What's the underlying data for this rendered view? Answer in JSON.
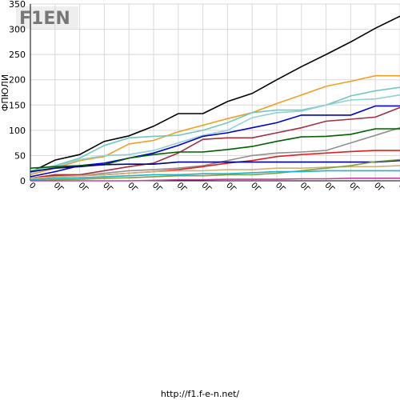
{
  "chart_data": {
    "type": "line",
    "y_label": "ФПЮЛИ",
    "logo": "F1EN",
    "footer": "http://f1.f-e-n.net/",
    "categories": [
      "0",
      "0Г",
      "0Г",
      "0Г",
      "0Г",
      "0Г",
      "0Г",
      "0Г",
      "0Г",
      "0Г",
      "0Г",
      "0Г",
      "0Г",
      "0Г",
      "0Г",
      "0Г"
    ],
    "ylim": [
      0,
      350
    ],
    "yticks": [
      0,
      50,
      100,
      150,
      200,
      250,
      300,
      350
    ],
    "grid": true,
    "series": [
      {
        "color": "#000000",
        "values": [
          17,
          41,
          52,
          78,
          89,
          108,
          133,
          133,
          157,
          173,
          200,
          226,
          250,
          275,
          302,
          326
        ]
      },
      {
        "color": "#f0a020",
        "values": [
          12,
          25,
          40,
          48,
          73,
          80,
          97,
          110,
          123,
          135,
          153,
          170,
          187,
          197,
          208,
          208
        ]
      },
      {
        "color": "#70c8c0",
        "values": [
          20,
          30,
          45,
          70,
          85,
          88,
          90,
          100,
          115,
          135,
          140,
          140,
          150,
          168,
          178,
          185
        ]
      },
      {
        "color": "#90d0d8",
        "values": [
          15,
          28,
          42,
          50,
          52,
          60,
          75,
          90,
          100,
          125,
          135,
          138,
          150,
          160,
          162,
          170
        ]
      },
      {
        "color": "#0000d0",
        "values": [
          8,
          18,
          30,
          35,
          45,
          55,
          70,
          88,
          95,
          105,
          115,
          130,
          130,
          130,
          148,
          148
        ]
      },
      {
        "color": "#a03040",
        "values": [
          5,
          12,
          12,
          20,
          28,
          35,
          55,
          82,
          85,
          85,
          95,
          105,
          118,
          122,
          126,
          145
        ]
      },
      {
        "color": "#909090",
        "values": [
          5,
          8,
          10,
          15,
          20,
          22,
          25,
          30,
          40,
          50,
          55,
          57,
          60,
          75,
          90,
          105
        ]
      },
      {
        "color": "#006000",
        "values": [
          25,
          28,
          30,
          32,
          45,
          52,
          57,
          57,
          62,
          68,
          78,
          87,
          88,
          92,
          103,
          103
        ]
      },
      {
        "color": "#e02020",
        "values": [
          5,
          10,
          10,
          12,
          15,
          18,
          22,
          28,
          35,
          40,
          48,
          52,
          55,
          58,
          60,
          60
        ]
      },
      {
        "color": "#000080",
        "values": [
          18,
          25,
          28,
          32,
          33,
          33,
          37,
          37,
          37,
          37,
          37,
          37,
          37,
          37,
          37,
          40
        ]
      },
      {
        "color": "#d0b070",
        "values": [
          5,
          8,
          10,
          12,
          15,
          18,
          20,
          20,
          22,
          22,
          25,
          25,
          27,
          28,
          28,
          30
        ]
      },
      {
        "color": "#80a040",
        "values": [
          0,
          2,
          3,
          5,
          6,
          8,
          10,
          10,
          12,
          12,
          15,
          20,
          25,
          30,
          38,
          42
        ]
      },
      {
        "color": "#20b0d0",
        "values": [
          2,
          5,
          6,
          8,
          10,
          12,
          12,
          14,
          14,
          16,
          18,
          18,
          20,
          20,
          20,
          20
        ]
      },
      {
        "color": "#c040a0",
        "values": [
          0,
          0,
          0,
          0,
          0,
          1,
          2,
          2,
          3,
          3,
          3,
          4,
          4,
          5,
          5,
          5
        ]
      }
    ]
  }
}
